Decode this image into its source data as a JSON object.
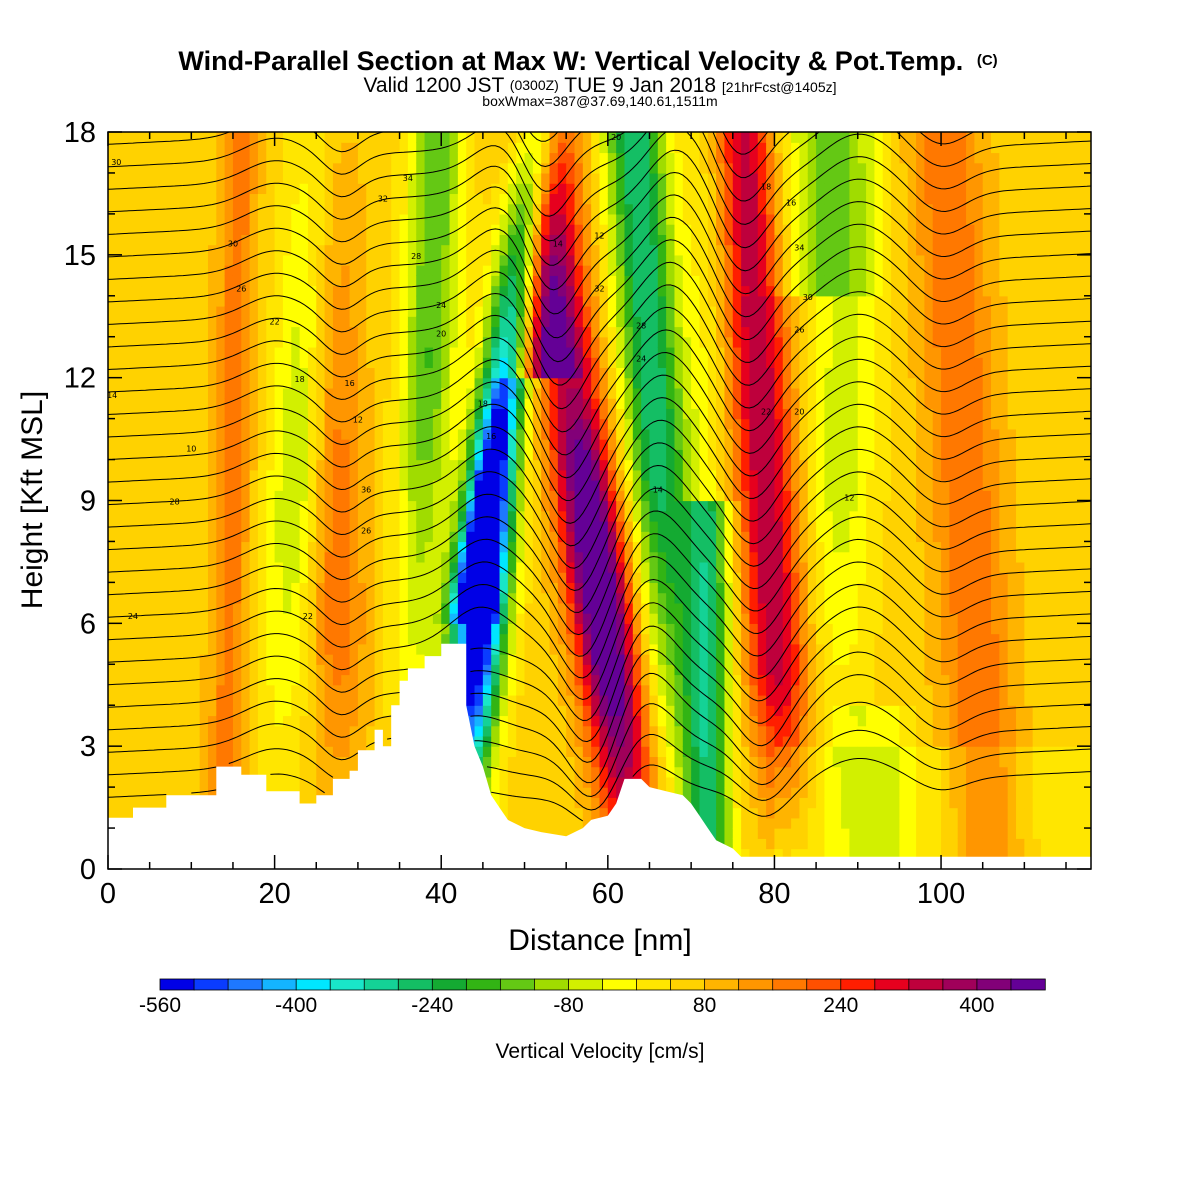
{
  "chart_data": {
    "type": "heatmap",
    "title": "Wind-Parallel Section at Max W: Vertical Velocity & Pot.Temp.",
    "title_suffix": "(C)",
    "subtitle_main": "Valid 1200 JST",
    "subtitle_small": "(0300Z)",
    "subtitle_date": "TUE 9 Jan 2018",
    "subtitle_fcst": "[21hrFcst@1405z]",
    "subtitle2": "boxWmax=387@37.69,140.61,1511m",
    "xlabel": "Distance [nm]",
    "ylabel": "Height [Kft MSL]",
    "xlim": [
      0,
      118
    ],
    "ylim": [
      0,
      18
    ],
    "x_ticks": [
      0,
      20,
      40,
      60,
      80,
      100
    ],
    "y_ticks": [
      0,
      3,
      6,
      9,
      12,
      15,
      18
    ],
    "colorbar": {
      "label": "Vertical Velocity [cm/s]",
      "range": [
        -560,
        480
      ],
      "tick_labels": [
        "-560",
        "-400",
        "-240",
        "-80",
        "80",
        "240",
        "400"
      ],
      "tick_values": [
        -560,
        -400,
        -240,
        -80,
        80,
        240,
        400
      ],
      "colors": [
        "#0000e6",
        "#0a3cff",
        "#1e78ff",
        "#14b4ff",
        "#00e6ff",
        "#19e6c8",
        "#14d296",
        "#14be64",
        "#14aa32",
        "#32b414",
        "#64c814",
        "#a0dc00",
        "#d2f000",
        "#ffff00",
        "#ffe600",
        "#ffd200",
        "#ffb400",
        "#ff9600",
        "#ff7800",
        "#ff5000",
        "#ff1e00",
        "#e6001e",
        "#be003c",
        "#a0005a",
        "#820078",
        "#640096"
      ]
    },
    "updraft_columns_nm": [
      28,
      53,
      59,
      80,
      105
    ],
    "downdraft_columns_nm": [
      38,
      45,
      65,
      72,
      88
    ],
    "max_downdraft_cms": -560,
    "max_updraft_cms": 430,
    "terrain_nm_kft": [
      [
        0,
        1.25
      ],
      [
        3,
        1.25
      ],
      [
        3,
        1.5
      ],
      [
        7,
        1.5
      ],
      [
        7,
        1.8
      ],
      [
        13,
        1.8
      ],
      [
        13,
        2.5
      ],
      [
        16,
        2.5
      ],
      [
        16,
        2.3
      ],
      [
        19,
        2.3
      ],
      [
        19,
        1.9
      ],
      [
        23,
        1.9
      ],
      [
        23,
        1.6
      ],
      [
        25,
        1.6
      ],
      [
        25,
        1.8
      ],
      [
        27,
        1.8
      ],
      [
        27,
        2.2
      ],
      [
        29,
        2.2
      ],
      [
        29,
        2.4
      ],
      [
        30,
        2.4
      ],
      [
        30,
        2.9
      ],
      [
        32,
        2.9
      ],
      [
        32,
        3.4
      ],
      [
        33,
        3.4
      ],
      [
        33,
        3.0
      ],
      [
        34,
        3.0
      ],
      [
        34,
        4.0
      ],
      [
        35,
        4.0
      ],
      [
        35,
        4.6
      ],
      [
        36,
        4.6
      ],
      [
        36,
        4.9
      ],
      [
        38,
        4.9
      ],
      [
        38,
        5.2
      ],
      [
        40,
        5.2
      ],
      [
        40,
        5.5
      ],
      [
        43,
        5.5
      ],
      [
        43,
        4.0
      ],
      [
        44,
        3.0
      ],
      [
        45,
        2.5
      ],
      [
        46,
        1.8
      ],
      [
        47,
        1.5
      ],
      [
        48,
        1.2
      ],
      [
        50,
        1.0
      ],
      [
        52,
        0.9
      ],
      [
        55,
        0.8
      ],
      [
        57,
        1.0
      ],
      [
        58,
        1.2
      ],
      [
        60,
        1.3
      ],
      [
        61,
        1.6
      ],
      [
        62,
        2.2
      ],
      [
        64,
        2.2
      ],
      [
        65,
        2.0
      ],
      [
        67,
        1.9
      ],
      [
        69,
        1.8
      ],
      [
        70,
        1.6
      ],
      [
        71,
        1.3
      ],
      [
        72,
        1.0
      ],
      [
        73,
        0.7
      ],
      [
        75,
        0.5
      ],
      [
        76,
        0.3
      ],
      [
        118,
        0.3
      ]
    ],
    "theta_contour_labels": [
      "30",
      "34",
      "32",
      "30",
      "28",
      "26",
      "24",
      "22",
      "20",
      "18",
      "16",
      "14",
      "12",
      "10",
      "36",
      "28",
      "26",
      "24",
      "22",
      "20",
      "18",
      "16",
      "14",
      "12",
      "34",
      "32",
      "30",
      "28",
      "26",
      "24",
      "22",
      "20",
      "18",
      "16",
      "14",
      "12"
    ]
  }
}
